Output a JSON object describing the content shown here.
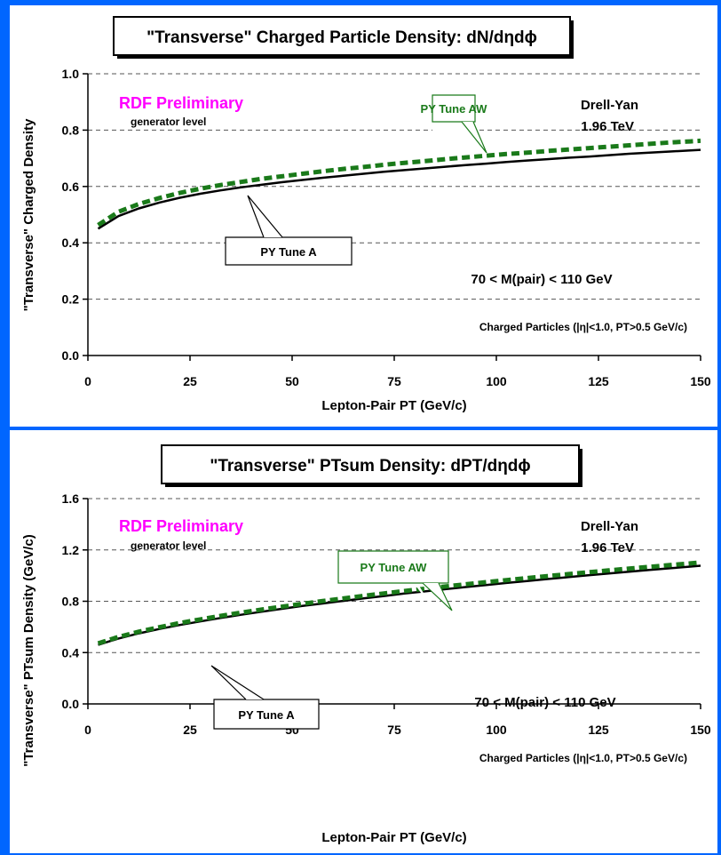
{
  "chart_data": [
    {
      "type": "line",
      "title": "\"Transverse\" Charged Particle Density: dN/dηdϕ",
      "xlabel": "Lepton-Pair PT  (GeV/c)",
      "ylabel": "\"Transverse\" Charged Density",
      "xlim": [
        0,
        150
      ],
      "ylim": [
        0,
        1.0
      ],
      "x_ticks": [
        "0",
        "25",
        "50",
        "75",
        "100",
        "125",
        "150"
      ],
      "y_ticks": [
        "0.0",
        "0.2",
        "0.4",
        "0.6",
        "0.8",
        "1.0"
      ],
      "grid": "horizontal dashed",
      "preliminary": "RDF Preliminary",
      "generator": "generator level",
      "process": "Drell-Yan",
      "energy": "1.96 TeV",
      "mass_cut": "70 < M(pair) < 110 GeV",
      "particles_cut": "Charged Particles (|η|<1.0, PT>0.5 GeV/c)",
      "series": [
        {
          "name": "PY Tune A",
          "color": "#000000",
          "style": "solid",
          "points": [
            [
              2.5,
              0.45
            ],
            [
              7.5,
              0.495
            ],
            [
              12.5,
              0.522
            ],
            [
              17.5,
              0.543
            ],
            [
              22.5,
              0.56
            ],
            [
              27.5,
              0.574
            ],
            [
              32.5,
              0.586
            ],
            [
              37.5,
              0.597
            ],
            [
              42.5,
              0.606
            ],
            [
              47.5,
              0.615
            ],
            [
              52.5,
              0.623
            ],
            [
              57.5,
              0.631
            ],
            [
              62.5,
              0.638
            ],
            [
              67.5,
              0.645
            ],
            [
              72.5,
              0.652
            ],
            [
              77.5,
              0.658
            ],
            [
              82.5,
              0.664
            ],
            [
              87.5,
              0.67
            ],
            [
              92.5,
              0.676
            ],
            [
              97.5,
              0.681
            ],
            [
              102.5,
              0.687
            ],
            [
              107.5,
              0.692
            ],
            [
              112.5,
              0.697
            ],
            [
              117.5,
              0.702
            ],
            [
              122.5,
              0.706
            ],
            [
              127.5,
              0.711
            ],
            [
              132.5,
              0.716
            ],
            [
              137.5,
              0.72
            ],
            [
              142.5,
              0.724
            ],
            [
              147.5,
              0.728
            ],
            [
              150,
              0.73
            ]
          ]
        },
        {
          "name": "PY Tune AW",
          "color": "#1a7a1a",
          "style": "dashed",
          "points": [
            [
              2.5,
              0.463
            ],
            [
              7.5,
              0.51
            ],
            [
              12.5,
              0.538
            ],
            [
              17.5,
              0.559
            ],
            [
              22.5,
              0.577
            ],
            [
              27.5,
              0.592
            ],
            [
              32.5,
              0.605
            ],
            [
              37.5,
              0.616
            ],
            [
              42.5,
              0.627
            ],
            [
              47.5,
              0.636
            ],
            [
              52.5,
              0.645
            ],
            [
              57.5,
              0.654
            ],
            [
              62.5,
              0.662
            ],
            [
              67.5,
              0.669
            ],
            [
              72.5,
              0.677
            ],
            [
              77.5,
              0.684
            ],
            [
              82.5,
              0.69
            ],
            [
              87.5,
              0.697
            ],
            [
              92.5,
              0.703
            ],
            [
              97.5,
              0.709
            ],
            [
              102.5,
              0.715
            ],
            [
              107.5,
              0.72
            ],
            [
              112.5,
              0.726
            ],
            [
              117.5,
              0.731
            ],
            [
              122.5,
              0.736
            ],
            [
              127.5,
              0.741
            ],
            [
              132.5,
              0.746
            ],
            [
              137.5,
              0.751
            ],
            [
              142.5,
              0.756
            ],
            [
              147.5,
              0.76
            ],
            [
              150,
              0.762
            ]
          ]
        }
      ]
    },
    {
      "type": "line",
      "title": "\"Transverse\" PTsum Density: dPT/dηdϕ",
      "xlabel": "Lepton-Pair PT  (GeV/c)",
      "ylabel": "\"Transverse\" PTsum Density (GeV/c)",
      "xlim": [
        0,
        150
      ],
      "ylim": [
        0,
        1.6
      ],
      "x_ticks": [
        "0",
        "25",
        "50",
        "75",
        "100",
        "125",
        "150"
      ],
      "y_ticks": [
        "0.0",
        "0.4",
        "0.8",
        "1.2",
        "1.6"
      ],
      "grid": "horizontal dashed",
      "preliminary": "RDF Preliminary",
      "generator": "generator level",
      "process": "Drell-Yan",
      "energy": "1.96 TeV",
      "mass_cut": "70 < M(pair) < 110 GeV",
      "particles_cut": "Charged Particles (|η|<1.0, PT>0.5 GeV/c)",
      "series": [
        {
          "name": "PY Tune A",
          "color": "#000000",
          "style": "solid",
          "points": [
            [
              2.5,
              0.46
            ],
            [
              7.5,
              0.51
            ],
            [
              12.5,
              0.55
            ],
            [
              17.5,
              0.584
            ],
            [
              22.5,
              0.615
            ],
            [
              27.5,
              0.643
            ],
            [
              32.5,
              0.67
            ],
            [
              37.5,
              0.695
            ],
            [
              42.5,
              0.718
            ],
            [
              47.5,
              0.741
            ],
            [
              52.5,
              0.763
            ],
            [
              57.5,
              0.783
            ],
            [
              62.5,
              0.803
            ],
            [
              67.5,
              0.823
            ],
            [
              72.5,
              0.841
            ],
            [
              77.5,
              0.86
            ],
            [
              82.5,
              0.877
            ],
            [
              87.5,
              0.894
            ],
            [
              92.5,
              0.911
            ],
            [
              97.5,
              0.927
            ],
            [
              102.5,
              0.943
            ],
            [
              107.5,
              0.958
            ],
            [
              112.5,
              0.973
            ],
            [
              117.5,
              0.988
            ],
            [
              122.5,
              1.002
            ],
            [
              127.5,
              1.017
            ],
            [
              132.5,
              1.03
            ],
            [
              137.5,
              1.044
            ],
            [
              142.5,
              1.057
            ],
            [
              147.5,
              1.07
            ],
            [
              150,
              1.077
            ]
          ]
        },
        {
          "name": "PY Tune AW",
          "color": "#1a7a1a",
          "style": "dashed",
          "points": [
            [
              2.5,
              0.472
            ],
            [
              7.5,
              0.522
            ],
            [
              12.5,
              0.563
            ],
            [
              17.5,
              0.598
            ],
            [
              22.5,
              0.63
            ],
            [
              27.5,
              0.659
            ],
            [
              32.5,
              0.686
            ],
            [
              37.5,
              0.711
            ],
            [
              42.5,
              0.735
            ],
            [
              47.5,
              0.758
            ],
            [
              52.5,
              0.78
            ],
            [
              57.5,
              0.802
            ],
            [
              62.5,
              0.822
            ],
            [
              67.5,
              0.842
            ],
            [
              72.5,
              0.861
            ],
            [
              77.5,
              0.88
            ],
            [
              82.5,
              0.898
            ],
            [
              87.5,
              0.915
            ],
            [
              92.5,
              0.932
            ],
            [
              97.5,
              0.949
            ],
            [
              102.5,
              0.965
            ],
            [
              107.5,
              0.981
            ],
            [
              112.5,
              0.996
            ],
            [
              117.5,
              1.011
            ],
            [
              122.5,
              1.026
            ],
            [
              127.5,
              1.04
            ],
            [
              132.5,
              1.055
            ],
            [
              137.5,
              1.068
            ],
            [
              142.5,
              1.082
            ],
            [
              147.5,
              1.095
            ],
            [
              150,
              1.102
            ]
          ]
        }
      ]
    }
  ]
}
